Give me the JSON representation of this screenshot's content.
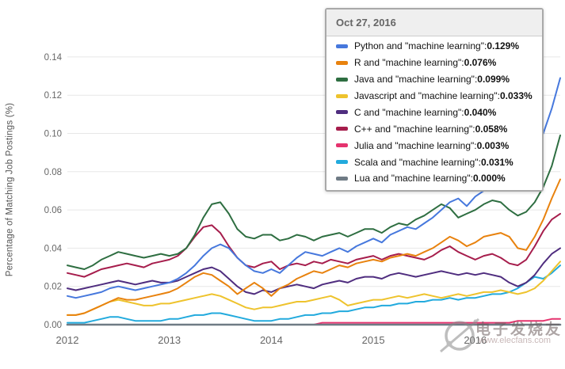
{
  "chart_data": {
    "type": "line",
    "title": "",
    "xlabel": "",
    "ylabel": "Percentage of Matching Job Postings (%)",
    "x_start_year": 2012,
    "x_end": "2016-10-27",
    "points_interval": "monthly",
    "x_tick_labels": [
      "2012",
      "2013",
      "2014",
      "2015",
      "2016"
    ],
    "y_ticks": [
      0.0,
      0.02,
      0.04,
      0.06,
      0.08,
      0.1,
      0.12,
      0.14
    ],
    "ylim": [
      0,
      0.14
    ],
    "grid": "horizontal",
    "legend_position": "tooltip-overlay-top-right",
    "series": [
      {
        "id": "python",
        "name": "Python and \"machine learning\"",
        "color": "#4678dd",
        "tooltip_value": "0.129%",
        "values": [
          0.015,
          0.014,
          0.015,
          0.016,
          0.017,
          0.019,
          0.02,
          0.019,
          0.018,
          0.019,
          0.02,
          0.021,
          0.022,
          0.024,
          0.027,
          0.031,
          0.036,
          0.04,
          0.042,
          0.04,
          0.035,
          0.031,
          0.028,
          0.027,
          0.029,
          0.027,
          0.031,
          0.035,
          0.038,
          0.037,
          0.036,
          0.038,
          0.04,
          0.038,
          0.041,
          0.043,
          0.045,
          0.043,
          0.047,
          0.049,
          0.051,
          0.05,
          0.053,
          0.056,
          0.06,
          0.064,
          0.066,
          0.062,
          0.067,
          0.07,
          0.072,
          0.074,
          0.077,
          0.08,
          0.085,
          0.092,
          0.1,
          0.113,
          0.129
        ]
      },
      {
        "id": "r",
        "name": "R and \"machine learning\"",
        "color": "#e8820e",
        "tooltip_value": "0.076%",
        "values": [
          0.005,
          0.005,
          0.006,
          0.008,
          0.01,
          0.012,
          0.014,
          0.013,
          0.013,
          0.014,
          0.015,
          0.016,
          0.017,
          0.019,
          0.022,
          0.025,
          0.027,
          0.026,
          0.023,
          0.02,
          0.016,
          0.019,
          0.022,
          0.019,
          0.015,
          0.019,
          0.021,
          0.024,
          0.026,
          0.028,
          0.027,
          0.029,
          0.031,
          0.03,
          0.032,
          0.033,
          0.034,
          0.033,
          0.035,
          0.036,
          0.037,
          0.036,
          0.038,
          0.04,
          0.043,
          0.046,
          0.044,
          0.041,
          0.043,
          0.046,
          0.047,
          0.048,
          0.046,
          0.04,
          0.039,
          0.046,
          0.055,
          0.066,
          0.076
        ]
      },
      {
        "id": "java",
        "name": "Java and \"machine learning\"",
        "color": "#2e6e41",
        "tooltip_value": "0.099%",
        "values": [
          0.031,
          0.03,
          0.029,
          0.031,
          0.034,
          0.036,
          0.038,
          0.037,
          0.036,
          0.035,
          0.036,
          0.037,
          0.036,
          0.037,
          0.04,
          0.047,
          0.056,
          0.063,
          0.064,
          0.058,
          0.05,
          0.046,
          0.045,
          0.047,
          0.047,
          0.044,
          0.045,
          0.047,
          0.046,
          0.044,
          0.046,
          0.047,
          0.048,
          0.046,
          0.048,
          0.05,
          0.05,
          0.048,
          0.051,
          0.053,
          0.052,
          0.055,
          0.057,
          0.06,
          0.063,
          0.061,
          0.056,
          0.058,
          0.06,
          0.063,
          0.065,
          0.064,
          0.06,
          0.057,
          0.059,
          0.064,
          0.072,
          0.083,
          0.099
        ]
      },
      {
        "id": "javascript",
        "name": "Javascript and \"machine learning\"",
        "color": "#eec32d",
        "tooltip_value": "0.033%",
        "values": [
          0.005,
          0.005,
          0.006,
          0.008,
          0.01,
          0.012,
          0.013,
          0.012,
          0.011,
          0.01,
          0.01,
          0.011,
          0.011,
          0.012,
          0.013,
          0.014,
          0.015,
          0.016,
          0.015,
          0.013,
          0.011,
          0.009,
          0.008,
          0.009,
          0.009,
          0.01,
          0.011,
          0.012,
          0.012,
          0.013,
          0.014,
          0.015,
          0.013,
          0.01,
          0.011,
          0.012,
          0.013,
          0.013,
          0.014,
          0.015,
          0.014,
          0.015,
          0.016,
          0.015,
          0.014,
          0.015,
          0.016,
          0.015,
          0.016,
          0.017,
          0.017,
          0.018,
          0.017,
          0.016,
          0.017,
          0.019,
          0.023,
          0.028,
          0.033
        ]
      },
      {
        "id": "c",
        "name": "C and \"machine learning\"",
        "color": "#4f2d7f",
        "tooltip_value": "0.040%",
        "values": [
          0.019,
          0.018,
          0.019,
          0.02,
          0.021,
          0.022,
          0.023,
          0.022,
          0.021,
          0.022,
          0.023,
          0.022,
          0.022,
          0.023,
          0.025,
          0.027,
          0.029,
          0.03,
          0.028,
          0.024,
          0.02,
          0.017,
          0.016,
          0.018,
          0.017,
          0.019,
          0.02,
          0.021,
          0.02,
          0.019,
          0.021,
          0.022,
          0.023,
          0.022,
          0.024,
          0.025,
          0.025,
          0.024,
          0.026,
          0.027,
          0.026,
          0.025,
          0.026,
          0.027,
          0.028,
          0.027,
          0.026,
          0.027,
          0.026,
          0.027,
          0.026,
          0.025,
          0.022,
          0.02,
          0.022,
          0.026,
          0.032,
          0.037,
          0.04
        ]
      },
      {
        "id": "cpp",
        "name": "C++ and \"machine learning\"",
        "color": "#a61d4c",
        "tooltip_value": "0.058%",
        "values": [
          0.027,
          0.026,
          0.025,
          0.027,
          0.029,
          0.03,
          0.031,
          0.032,
          0.031,
          0.03,
          0.032,
          0.033,
          0.034,
          0.036,
          0.04,
          0.046,
          0.051,
          0.052,
          0.048,
          0.041,
          0.035,
          0.031,
          0.03,
          0.032,
          0.033,
          0.029,
          0.031,
          0.032,
          0.031,
          0.033,
          0.032,
          0.034,
          0.033,
          0.032,
          0.034,
          0.035,
          0.036,
          0.034,
          0.036,
          0.037,
          0.036,
          0.035,
          0.034,
          0.036,
          0.039,
          0.041,
          0.038,
          0.036,
          0.034,
          0.036,
          0.037,
          0.035,
          0.032,
          0.031,
          0.034,
          0.041,
          0.049,
          0.055,
          0.058
        ]
      },
      {
        "id": "julia",
        "name": "Julia and \"machine learning\"",
        "color": "#e5336e",
        "tooltip_value": "0.003%",
        "values": [
          0,
          0,
          0,
          0,
          0,
          0,
          0,
          0,
          0,
          0,
          0,
          0,
          0,
          0,
          0,
          0,
          0,
          0,
          0,
          0,
          0,
          0,
          0,
          0,
          0,
          0,
          0,
          0,
          0,
          0,
          0.001,
          0.001,
          0.001,
          0.001,
          0.001,
          0.001,
          0.001,
          0.001,
          0.001,
          0.001,
          0.001,
          0.001,
          0.001,
          0.001,
          0.001,
          0.001,
          0.001,
          0.001,
          0.001,
          0.001,
          0.001,
          0.001,
          0.001,
          0.002,
          0.002,
          0.002,
          0.002,
          0.003,
          0.003
        ]
      },
      {
        "id": "scala",
        "name": "Scala and \"machine learning\"",
        "color": "#22aadd",
        "tooltip_value": "0.031%",
        "values": [
          0.001,
          0.001,
          0.001,
          0.002,
          0.003,
          0.004,
          0.004,
          0.003,
          0.002,
          0.002,
          0.002,
          0.002,
          0.003,
          0.003,
          0.004,
          0.005,
          0.005,
          0.006,
          0.006,
          0.005,
          0.004,
          0.003,
          0.002,
          0.002,
          0.002,
          0.003,
          0.003,
          0.004,
          0.005,
          0.005,
          0.006,
          0.006,
          0.007,
          0.007,
          0.008,
          0.009,
          0.009,
          0.01,
          0.01,
          0.011,
          0.011,
          0.012,
          0.012,
          0.013,
          0.013,
          0.014,
          0.013,
          0.014,
          0.014,
          0.015,
          0.016,
          0.016,
          0.017,
          0.019,
          0.022,
          0.025,
          0.024,
          0.027,
          0.031
        ]
      },
      {
        "id": "lua",
        "name": "Lua and \"machine learning\"",
        "color": "#6f7b85",
        "tooltip_value": "0.000%",
        "values": [
          0,
          0,
          0,
          0,
          0,
          0,
          0,
          0,
          0,
          0,
          0,
          0,
          0,
          0,
          0,
          0,
          0,
          0,
          0,
          0,
          0,
          0,
          0,
          0,
          0,
          0,
          0,
          0,
          0,
          0,
          0,
          0,
          0,
          0,
          0,
          0,
          0,
          0,
          0,
          0,
          0,
          0,
          0,
          0,
          0,
          0,
          0,
          0,
          0,
          0,
          0,
          0,
          0,
          0,
          0,
          0,
          0,
          0,
          0
        ]
      }
    ]
  },
  "tooltip": {
    "date": "Oct 27, 2016",
    "separator": " : "
  },
  "watermark": {
    "site_name": "电子发烧友",
    "site_url": "www.elecfans.com"
  },
  "style": {
    "grid_color": "#e7e7e7",
    "tick_label_color": "#666666",
    "axis_title_color": "#555555"
  }
}
